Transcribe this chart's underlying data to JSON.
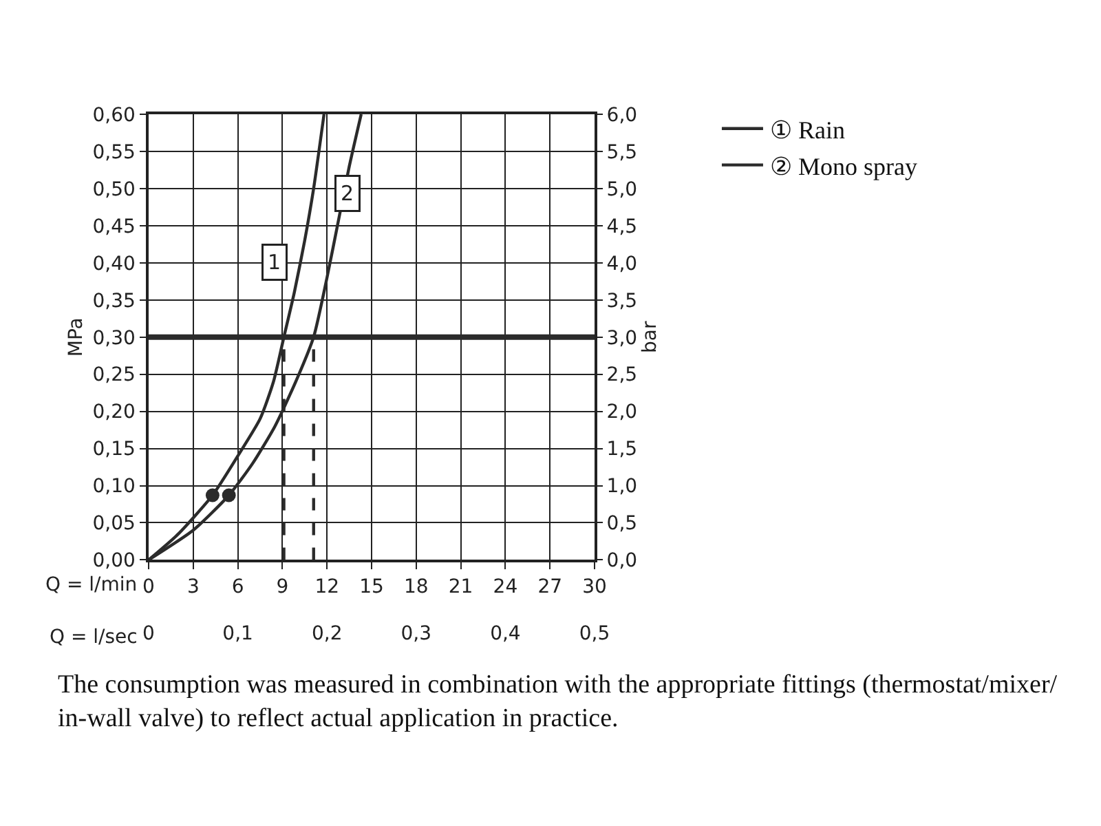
{
  "chart_data": {
    "type": "line",
    "xlabel": "Q = l/min",
    "x2label": "Q = l/sec",
    "ylabel": "MPa",
    "y2label": "bar",
    "xlim": [
      0,
      30
    ],
    "xticks": [
      0,
      3,
      6,
      9,
      12,
      15,
      18,
      21,
      24,
      27,
      30
    ],
    "x2lim": [
      0,
      0.5
    ],
    "x2ticks": [
      0,
      {
        "value": 0.1,
        "label": "0,1"
      },
      {
        "value": 0.2,
        "label": "0,2"
      },
      {
        "value": 0.3,
        "label": "0,3"
      },
      {
        "value": 0.4,
        "label": "0,4"
      },
      {
        "value": 0.5,
        "label": "0,5"
      }
    ],
    "ylim": [
      0,
      0.6
    ],
    "yticks": [
      {
        "value": 0,
        "label": "0,00"
      },
      {
        "value": 0.05,
        "label": "0,05"
      },
      {
        "value": 0.1,
        "label": "0,10"
      },
      {
        "value": 0.15,
        "label": "0,15"
      },
      {
        "value": 0.2,
        "label": "0,20"
      },
      {
        "value": 0.25,
        "label": "0,25"
      },
      {
        "value": 0.3,
        "label": "0,30"
      },
      {
        "value": 0.35,
        "label": "0,35"
      },
      {
        "value": 0.4,
        "label": "0,40"
      },
      {
        "value": 0.45,
        "label": "0,45"
      },
      {
        "value": 0.5,
        "label": "0,50"
      },
      {
        "value": 0.55,
        "label": "0,55"
      },
      {
        "value": 0.6,
        "label": "0,60"
      }
    ],
    "y2lim": [
      0,
      6
    ],
    "y2ticks": [
      {
        "value": 0,
        "label": "0,0"
      },
      {
        "value": 0.5,
        "label": "0,5"
      },
      {
        "value": 1,
        "label": "1,0"
      },
      {
        "value": 1.5,
        "label": "1,5"
      },
      {
        "value": 2,
        "label": "2,0"
      },
      {
        "value": 2.5,
        "label": "2,5"
      },
      {
        "value": 3,
        "label": "3,0"
      },
      {
        "value": 3.5,
        "label": "3,5"
      },
      {
        "value": 4,
        "label": "4,0"
      },
      {
        "value": 4.5,
        "label": "4,5"
      },
      {
        "value": 5,
        "label": "5,0"
      },
      {
        "value": 5.5,
        "label": "5,5"
      },
      {
        "value": 6,
        "label": "6,0"
      }
    ],
    "grid": true,
    "legend": "top right",
    "series": [
      {
        "name": "① Rain",
        "color": "#2b2b2b",
        "marker": "none",
        "line_style": "solid",
        "x": [
          0,
          2,
          4.3,
          6,
          7.5,
          8.4,
          9.1,
          9.8,
          10.5,
          11.1,
          11.8
        ],
        "values": [
          0,
          0.035,
          0.087,
          0.14,
          0.19,
          0.24,
          0.3,
          0.36,
          0.43,
          0.5,
          0.6
        ]
      },
      {
        "name": "② Mono spray",
        "color": "#2b2b2b",
        "marker": "none",
        "line_style": "solid",
        "x": [
          0,
          3,
          5.4,
          7,
          8.5,
          9.9,
          11.1,
          12,
          12.8,
          13.5,
          14.3
        ],
        "values": [
          0,
          0.04,
          0.087,
          0.13,
          0.18,
          0.24,
          0.3,
          0.38,
          0.46,
          0.53,
          0.6
        ]
      },
      {
        "type": "scatter",
        "color": "#2b2b2b",
        "marker": "circle",
        "x": [
          4.3,
          5.4
        ],
        "values": [
          0.087,
          0.087
        ]
      },
      {
        "type": "line",
        "color": "#2b2b2b",
        "marker": "none",
        "line_style": "dashed",
        "x": [
          9.1,
          9.1
        ],
        "values": [
          0,
          0.3
        ]
      },
      {
        "type": "line",
        "color": "#2b2b2b",
        "marker": "none",
        "line_style": "dashed",
        "x": [
          11.1,
          11.1
        ],
        "values": [
          0,
          0.3
        ]
      }
    ],
    "ref_lines": [
      {
        "axis": "y",
        "value": 0.3,
        "color": "#2b2b2b"
      }
    ],
    "annotations": [
      {
        "text": "1",
        "x": 8.5,
        "y": 0.4
      },
      {
        "text": "2",
        "x": 13.4,
        "y": 0.493
      },
      "The consumption was measured in combination with the appropriate fittings (thermostat/mixer/\nin-wall valve) to reflect actual application in practice."
    ]
  }
}
